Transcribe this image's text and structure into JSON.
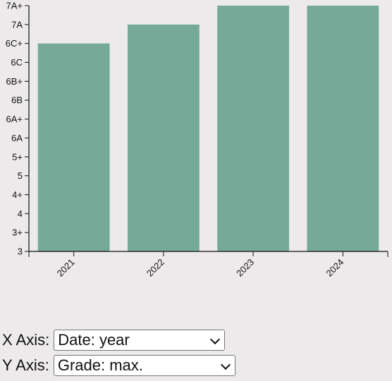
{
  "chart_data": {
    "type": "bar",
    "categories": [
      "2021",
      "2022",
      "2023",
      "2024"
    ],
    "y_ticks": [
      "3",
      "3+",
      "4",
      "4+",
      "5",
      "5+",
      "6A",
      "6A+",
      "6B",
      "6B+",
      "6C",
      "6C+",
      "7A",
      "7A+"
    ],
    "values": [
      "6C+",
      "7A",
      "7A+",
      "7A+"
    ],
    "value_index": [
      11,
      12,
      13,
      13
    ],
    "bar_color": "#75aa98",
    "title": "",
    "xlabel": "",
    "ylabel": ""
  },
  "controls": {
    "x_axis_label": "X Axis:",
    "x_axis_value": "Date: year",
    "y_axis_label": "Y Axis:",
    "y_axis_value": "Grade: max."
  }
}
